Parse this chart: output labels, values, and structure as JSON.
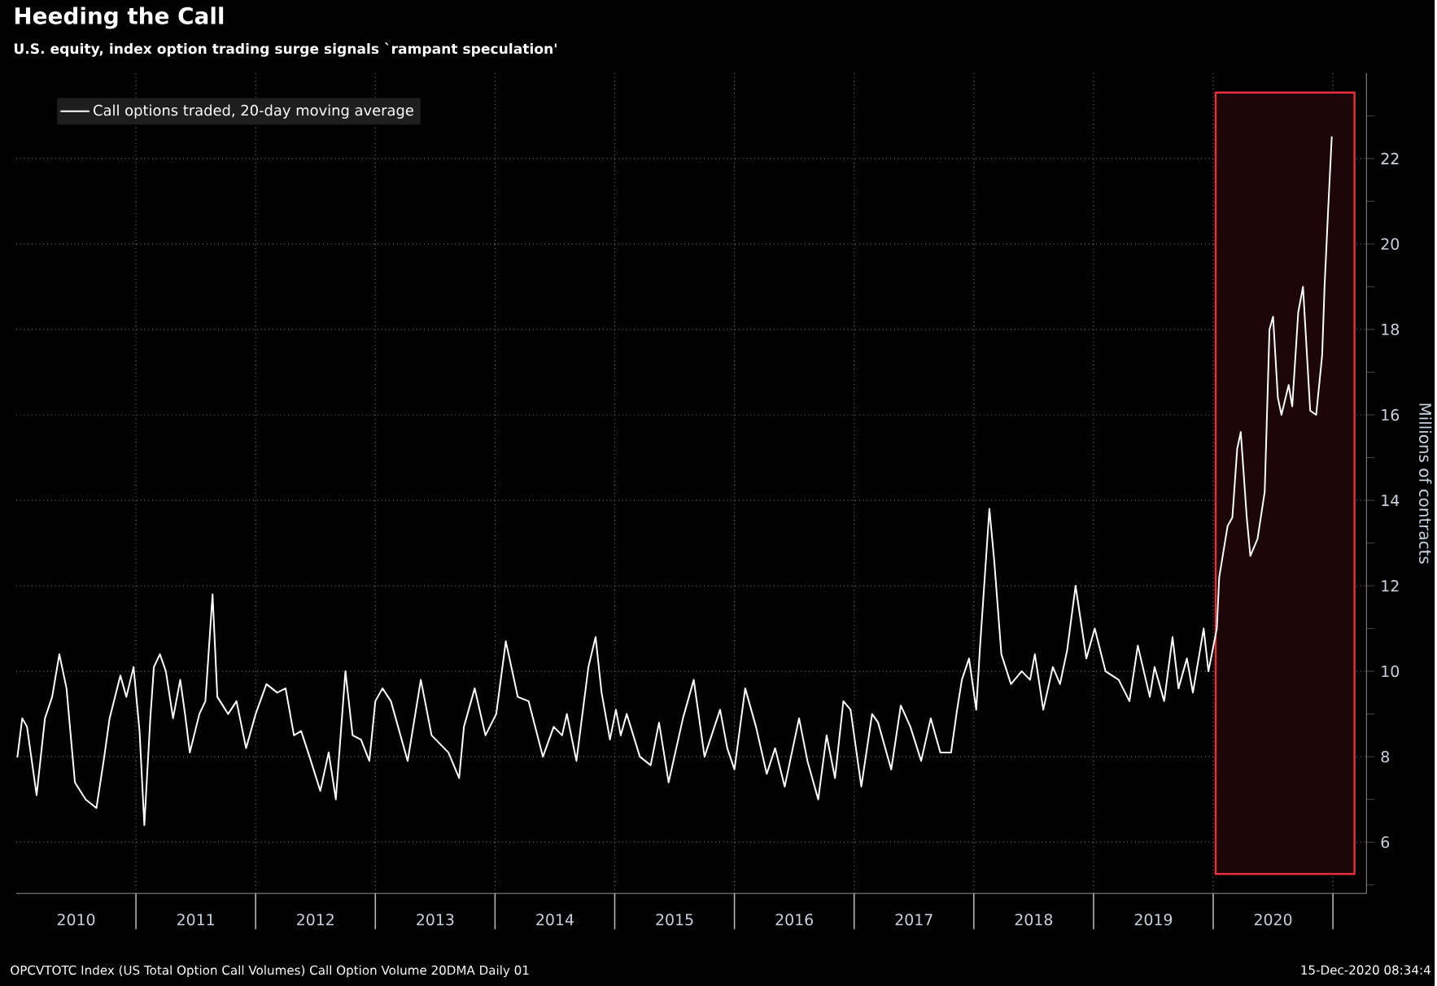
{
  "chart_data": {
    "type": "line",
    "title": "Heeding the Call",
    "subtitle": "U.S. equity, index option trading surge signals `rampant speculation'",
    "ylabel": "Millions of contracts",
    "annotations": [
      "OPCVTOTC Index (US Total Option Call Volumes) Call Option Volume 20DMA  Daily 01",
      "15-Dec-2020 08:34:4"
    ],
    "xlim": [
      2010,
      2021.28
    ],
    "ylim": [
      4.8,
      24.0
    ],
    "xticks": [
      {
        "value": 2010.5,
        "label": "2010"
      },
      {
        "value": 2011.5,
        "label": "2011"
      },
      {
        "value": 2012.5,
        "label": "2012"
      },
      {
        "value": 2013.5,
        "label": "2013"
      },
      {
        "value": 2014.5,
        "label": "2014"
      },
      {
        "value": 2015.5,
        "label": "2015"
      },
      {
        "value": 2016.5,
        "label": "2016"
      },
      {
        "value": 2017.5,
        "label": "2017"
      },
      {
        "value": 2018.5,
        "label": "2018"
      },
      {
        "value": 2019.5,
        "label": "2019"
      },
      {
        "value": 2020.5,
        "label": "2020"
      },
      {
        "value": 2011,
        "label": null
      },
      {
        "value": 2012,
        "label": null
      },
      {
        "value": 2013,
        "label": null
      },
      {
        "value": 2014,
        "label": null
      },
      {
        "value": 2015,
        "label": null
      },
      {
        "value": 2016,
        "label": null
      },
      {
        "value": 2017,
        "label": null
      },
      {
        "value": 2018,
        "label": null
      },
      {
        "value": 2019,
        "label": null
      },
      {
        "value": 2020,
        "label": null
      },
      {
        "value": 2021,
        "label": null
      }
    ],
    "yticks": [
      6,
      8,
      10,
      12,
      14,
      16,
      18,
      20,
      22,
      {
        "value": 5,
        "label": null
      },
      {
        "value": 7,
        "label": null
      },
      {
        "value": 9,
        "label": null
      },
      {
        "value": 11,
        "label": null
      },
      {
        "value": 13,
        "label": null
      },
      {
        "value": 15,
        "label": null
      },
      {
        "value": 17,
        "label": null
      },
      {
        "value": 19,
        "label": null
      },
      {
        "value": 21,
        "label": null
      },
      {
        "value": 23,
        "label": null
      }
    ],
    "grid": true,
    "legend": "top left",
    "bands": [
      {
        "axis": "x",
        "from": 2020.02,
        "to": 2021.18,
        "color": "#e8303c"
      }
    ],
    "x": [
      2010.01,
      2010.05,
      2010.09,
      2010.17,
      2010.24,
      2010.3,
      2010.36,
      2010.42,
      2010.49,
      2010.58,
      2010.67,
      2010.73,
      2010.78,
      2010.87,
      2010.92,
      2010.98,
      2011.03,
      2011.07,
      2011.12,
      2011.15,
      2011.2,
      2011.25,
      2011.31,
      2011.37,
      2011.41,
      2011.45,
      2011.53,
      2011.58,
      2011.64,
      2011.68,
      2011.77,
      2011.84,
      2011.92,
      2012.0,
      2012.09,
      2012.18,
      2012.25,
      2012.32,
      2012.38,
      2012.45,
      2012.54,
      2012.61,
      2012.67,
      2012.75,
      2012.81,
      2012.88,
      2012.95,
      2013.0,
      2013.06,
      2013.13,
      2013.27,
      2013.38,
      2013.47,
      2013.61,
      2013.7,
      2013.74,
      2013.83,
      2013.92,
      2014.01,
      2014.09,
      2014.19,
      2014.28,
      2014.4,
      2014.49,
      2014.56,
      2014.6,
      2014.68,
      2014.78,
      2014.84,
      2014.89,
      2014.96,
      2015.01,
      2015.05,
      2015.1,
      2015.21,
      2015.3,
      2015.37,
      2015.45,
      2015.57,
      2015.66,
      2015.75,
      2015.88,
      2015.94,
      2016.0,
      2016.09,
      2016.18,
      2016.27,
      2016.34,
      2016.42,
      2016.54,
      2016.61,
      2016.7,
      2016.77,
      2016.84,
      2016.91,
      2016.97,
      2017.06,
      2017.15,
      2017.2,
      2017.31,
      2017.39,
      2017.47,
      2017.56,
      2017.64,
      2017.72,
      2017.81,
      2017.86,
      2017.9,
      2017.96,
      2018.02,
      2018.05,
      2018.13,
      2018.17,
      2018.23,
      2018.31,
      2018.4,
      2018.47,
      2018.51,
      2018.58,
      2018.66,
      2018.72,
      2018.78,
      2018.85,
      2018.94,
      2019.01,
      2019.1,
      2019.21,
      2019.3,
      2019.37,
      2019.47,
      2019.51,
      2019.59,
      2019.66,
      2019.71,
      2019.78,
      2019.83,
      2019.92,
      2019.96,
      2020.03,
      2020.05,
      2020.12,
      2020.16,
      2020.2,
      2020.23,
      2020.28,
      2020.31,
      2020.37,
      2020.43,
      2020.47,
      2020.5,
      2020.54,
      2020.57,
      2020.63,
      2020.66,
      2020.71,
      2020.75,
      2020.81,
      2020.86,
      2020.91,
      2020.93,
      2020.96,
      2020.99
    ],
    "series": [
      {
        "name": "Call options traded, 20-day moving average",
        "color": "#ffffff",
        "values": [
          8.0,
          8.9,
          8.7,
          7.1,
          8.9,
          9.4,
          10.4,
          9.6,
          7.4,
          7.0,
          6.8,
          7.9,
          8.9,
          9.9,
          9.4,
          10.1,
          8.6,
          6.4,
          8.9,
          10.1,
          10.4,
          10.0,
          8.9,
          9.8,
          9.0,
          8.1,
          9.0,
          9.3,
          11.8,
          9.4,
          9.0,
          9.3,
          8.2,
          9.0,
          9.7,
          9.5,
          9.6,
          8.5,
          8.6,
          8.0,
          7.2,
          8.1,
          7.0,
          10.0,
          8.5,
          8.4,
          7.9,
          9.3,
          9.6,
          9.3,
          7.9,
          9.8,
          8.5,
          8.1,
          7.5,
          8.7,
          9.6,
          8.5,
          9.0,
          10.7,
          9.4,
          9.3,
          8.0,
          8.7,
          8.5,
          9.0,
          7.9,
          10.1,
          10.8,
          9.5,
          8.4,
          9.1,
          8.5,
          9.0,
          8.0,
          7.8,
          8.8,
          7.4,
          8.9,
          9.8,
          8.0,
          9.1,
          8.2,
          7.7,
          9.6,
          8.7,
          7.6,
          8.2,
          7.3,
          8.9,
          7.9,
          7.0,
          8.5,
          7.5,
          9.3,
          9.1,
          7.3,
          9.0,
          8.8,
          7.7,
          9.2,
          8.7,
          7.9,
          8.9,
          8.1,
          8.1,
          9.1,
          9.8,
          10.3,
          9.1,
          10.5,
          13.8,
          12.6,
          10.4,
          9.7,
          10.0,
          9.8,
          10.4,
          9.1,
          10.1,
          9.7,
          10.5,
          12.0,
          10.3,
          11.0,
          10.0,
          9.8,
          9.3,
          10.6,
          9.4,
          10.1,
          9.3,
          10.8,
          9.6,
          10.3,
          9.5,
          11.0,
          10.0,
          11.0,
          12.2,
          13.4,
          13.6,
          15.2,
          15.6,
          13.6,
          12.7,
          13.1,
          14.2,
          18.0,
          18.3,
          16.4,
          16.0,
          16.7,
          16.2,
          18.4,
          19.0,
          16.1,
          16.0,
          17.4,
          19.0,
          20.8,
          22.5
        ]
      }
    ]
  }
}
